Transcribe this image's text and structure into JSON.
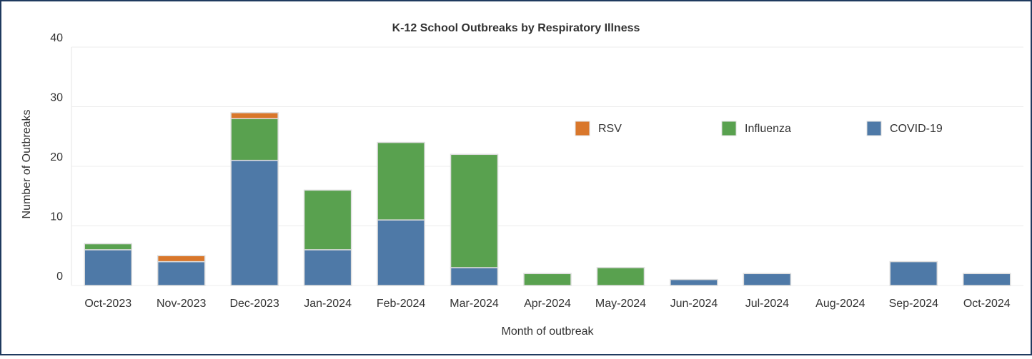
{
  "chart_data": {
    "type": "stacked_bar",
    "title": "K-12 School Outbreaks by Respiratory Illness",
    "xlabel": "Month of outbreak",
    "ylabel": "Number of Outbreaks",
    "categories": [
      "Oct-2023",
      "Nov-2023",
      "Dec-2023",
      "Jan-2024",
      "Feb-2024",
      "Mar-2024",
      "Apr-2024",
      "May-2024",
      "Jun-2024",
      "Jul-2024",
      "Aug-2024",
      "Sep-2024",
      "Oct-2024"
    ],
    "series": [
      {
        "name": "COVID-19",
        "color": "#4e79a7",
        "values": [
          6,
          4,
          21,
          6,
          11,
          3,
          0,
          0,
          1,
          2,
          0,
          4,
          2
        ]
      },
      {
        "name": "Influenza",
        "color": "#59a14f",
        "values": [
          1,
          0,
          7,
          10,
          13,
          19,
          2,
          3,
          0,
          0,
          0,
          0,
          0
        ]
      },
      {
        "name": "RSV",
        "color": "#d9772b",
        "values": [
          0,
          1,
          1,
          0,
          0,
          0,
          0,
          0,
          0,
          0,
          0,
          0,
          0
        ]
      }
    ],
    "ylim": [
      0,
      40
    ],
    "yticks": [
      0,
      10,
      20,
      30,
      40
    ],
    "grid": true
  }
}
